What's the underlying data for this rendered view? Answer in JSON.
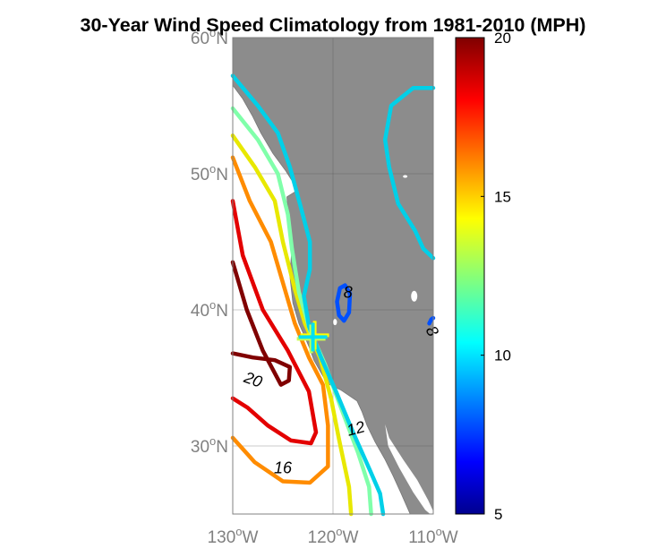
{
  "chart_data": {
    "type": "heatmap",
    "title": "30-Year Wind Speed Climatology from 1981-2010 (MPH)",
    "map": {
      "lon_range": [
        -130,
        -110
      ],
      "lat_range": [
        25,
        60
      ],
      "x_ticks": [
        {
          "value": -130,
          "deg": "130",
          "hem": "W"
        },
        {
          "value": -120,
          "deg": "120",
          "hem": "W"
        },
        {
          "value": -110,
          "deg": "110",
          "hem": "W"
        }
      ],
      "y_ticks": [
        {
          "value": 30,
          "deg": "30",
          "hem": "N"
        },
        {
          "value": 40,
          "deg": "40",
          "hem": "N"
        },
        {
          "value": 50,
          "deg": "50",
          "hem": "N"
        },
        {
          "value": 60,
          "deg": "60",
          "hem": "N"
        }
      ],
      "grid": true,
      "land_color": "#8c8c8c",
      "ocean_color": "#ffffff"
    },
    "colorbar": {
      "colormap": "jet",
      "range": [
        5,
        20
      ],
      "ticks": [
        "5",
        "10",
        "15",
        "20"
      ],
      "placement": "right"
    },
    "contours": [
      {
        "level": 21,
        "color": "#800000",
        "points": [
          [
            -130,
            43.5
          ],
          [
            -128.6,
            40
          ],
          [
            -127,
            37
          ],
          [
            -125.2,
            34.5
          ],
          [
            -124.4,
            34.8
          ],
          [
            -124.3,
            35.8
          ],
          [
            -125.8,
            36.3
          ],
          [
            -128,
            36.5
          ],
          [
            -130,
            36.8
          ]
        ]
      },
      {
        "level": 20,
        "color": "#e30000",
        "points": [
          [
            -130,
            48
          ],
          [
            -129,
            44
          ],
          [
            -127,
            40
          ],
          [
            -124.5,
            37
          ],
          [
            -122.4,
            34
          ],
          [
            -121.7,
            31
          ],
          [
            -122.2,
            30.2
          ],
          [
            -124.2,
            30.4
          ],
          [
            -126.5,
            31.5
          ],
          [
            -128.5,
            32.8
          ],
          [
            -130,
            33.5
          ]
        ]
      },
      {
        "level": 16,
        "color": "#ff8c00",
        "points": [
          [
            -130,
            51.2
          ],
          [
            -128.3,
            48
          ],
          [
            -126.2,
            45
          ],
          [
            -125,
            42
          ],
          [
            -123.8,
            39
          ],
          [
            -122.4,
            36.5
          ],
          [
            -121,
            34.5
          ],
          [
            -120.5,
            31.5
          ],
          [
            -120.5,
            28.5
          ],
          [
            -122.3,
            27.3
          ],
          [
            -125,
            27.4
          ],
          [
            -127.8,
            28.8
          ],
          [
            -130,
            30.6
          ]
        ]
      },
      {
        "level": 14,
        "color": "#e8e800",
        "points": [
          [
            -130,
            52.8
          ],
          [
            -127.8,
            50.5
          ],
          [
            -125.8,
            48
          ],
          [
            -125,
            45
          ],
          [
            -123.8,
            41.5
          ],
          [
            -122.8,
            39
          ],
          [
            -121.3,
            36.5
          ],
          [
            -120.2,
            33.5
          ],
          [
            -119.4,
            30.5
          ],
          [
            -118.4,
            27
          ],
          [
            -118.2,
            25
          ]
        ]
      },
      {
        "level": 12,
        "color": "#80ffaa",
        "points": [
          [
            -130,
            54.8
          ],
          [
            -127.5,
            52.5
          ],
          [
            -125.5,
            50
          ],
          [
            -124.5,
            47
          ],
          [
            -124.1,
            44.5
          ],
          [
            -123.4,
            41.3
          ],
          [
            -122.3,
            38.5
          ],
          [
            -120.8,
            36
          ],
          [
            -119.3,
            33
          ],
          [
            -117.5,
            29.5
          ],
          [
            -116.4,
            27
          ],
          [
            -116.2,
            25
          ]
        ]
      },
      {
        "level": 11,
        "color": "#00d0e8",
        "points": [
          [
            -130,
            57.2
          ],
          [
            -127.5,
            55
          ],
          [
            -125.5,
            53
          ],
          [
            -124.3,
            50.5
          ],
          [
            -123.2,
            47.5
          ],
          [
            -122.3,
            45
          ],
          [
            -122.3,
            43
          ],
          [
            -122.9,
            41
          ],
          [
            -122.4,
            38.8
          ],
          [
            -121.2,
            36.5
          ],
          [
            -119.7,
            34
          ],
          [
            -118,
            31
          ],
          [
            -116.3,
            28.2
          ],
          [
            -115.3,
            26.5
          ],
          [
            -115,
            25
          ]
        ]
      },
      {
        "level": 11,
        "color": "#00d0e8",
        "points": [
          [
            -110,
            56.3
          ],
          [
            -112,
            56.3
          ],
          [
            -114.2,
            55
          ],
          [
            -114.8,
            52.5
          ],
          [
            -114.4,
            50.5
          ],
          [
            -113.5,
            47.8
          ],
          [
            -111.8,
            45.8
          ],
          [
            -111,
            44.5
          ],
          [
            -110,
            43.8
          ]
        ]
      },
      {
        "level": 8,
        "color": "#0050ff",
        "points": [
          [
            -119.6,
            40.6
          ],
          [
            -119.3,
            41.6
          ],
          [
            -118.8,
            41.8
          ],
          [
            -118.3,
            41.2
          ],
          [
            -118.4,
            39.8
          ],
          [
            -118.9,
            39.2
          ],
          [
            -119.4,
            39.6
          ],
          [
            -119.6,
            40.6
          ]
        ]
      },
      {
        "level": 8,
        "color": "#0050ff",
        "points": [
          [
            -110.4,
            39
          ],
          [
            -110.2,
            39.3
          ],
          [
            -110,
            39.4
          ]
        ]
      }
    ],
    "contour_labels": [
      {
        "text": "20",
        "lon": -128,
        "lat": 34.8,
        "rotate": 20
      },
      {
        "text": "16",
        "lon": -125,
        "lat": 28.3,
        "rotate": 0
      },
      {
        "text": "12",
        "lon": -117.7,
        "lat": 31.2,
        "rotate": -15
      },
      {
        "text": "8",
        "lon": -118.5,
        "lat": 41.2,
        "rotate": 0
      },
      {
        "text": "8",
        "lon": -110.2,
        "lat": 38.4,
        "rotate": 60
      }
    ],
    "marker": {
      "lon": -122,
      "lat": 38,
      "colors": [
        "#ffff00",
        "#c8ff50",
        "#00e0f0"
      ]
    }
  }
}
